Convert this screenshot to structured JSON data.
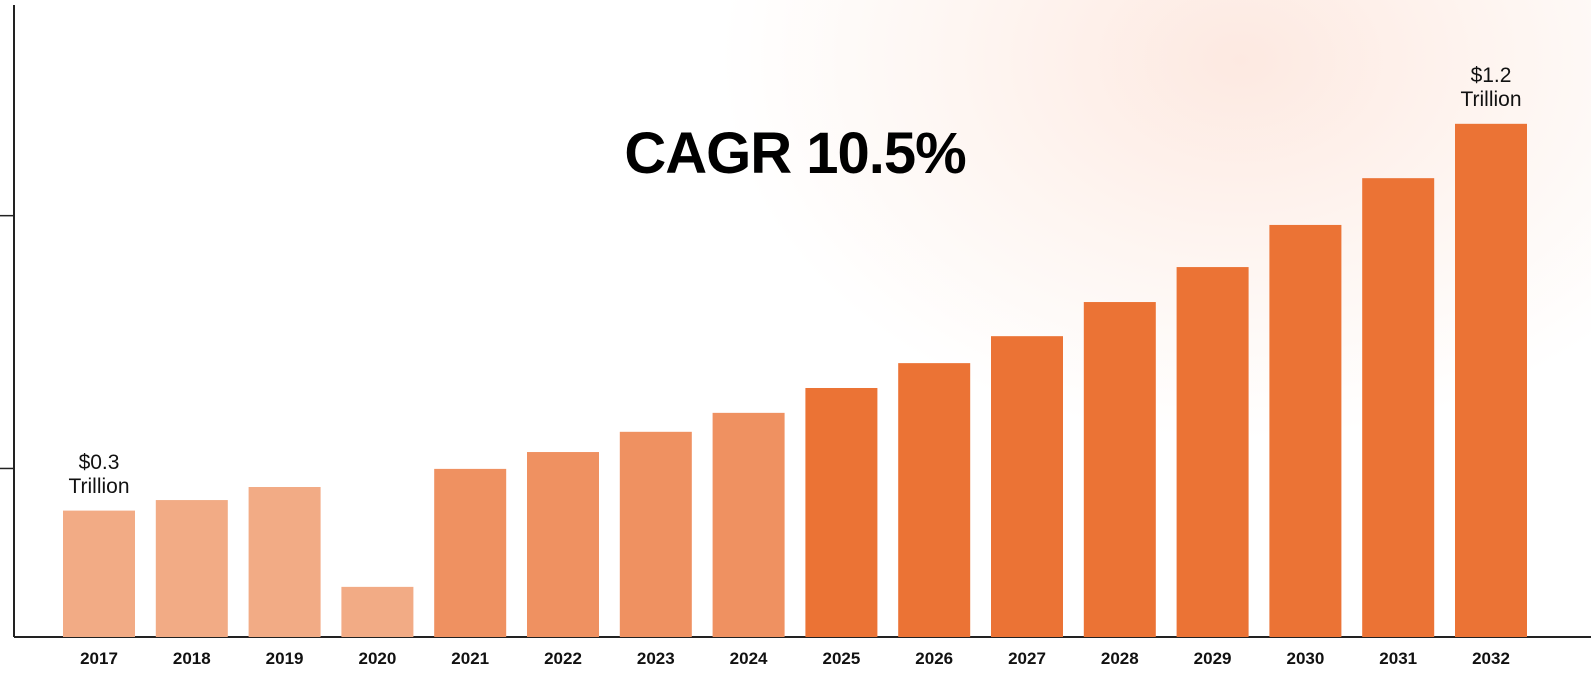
{
  "chart_data": {
    "type": "bar",
    "annotation": "CAGR 10.5%",
    "categories": [
      "2017",
      "2018",
      "2019",
      "2020",
      "2021",
      "2022",
      "2023",
      "2024",
      "2025",
      "2026",
      "2027",
      "2028",
      "2029",
      "2030",
      "2031",
      "2032"
    ],
    "values": [
      0.3,
      0.325,
      0.356,
      0.119,
      0.399,
      0.439,
      0.487,
      0.532,
      0.591,
      0.65,
      0.714,
      0.795,
      0.878,
      0.978,
      1.089,
      1.218
    ],
    "value_labels": [
      "$0.3\nTrillion",
      null,
      null,
      null,
      null,
      null,
      null,
      null,
      null,
      null,
      null,
      null,
      null,
      null,
      null,
      "$1.2\nTrillion"
    ],
    "colors": [
      "#f2ab85",
      "#f2ab85",
      "#f2ab85",
      "#f2ab85",
      "#ef9161",
      "#ef9161",
      "#ef9161",
      "#ef9161",
      "#eb7335",
      "#eb7335",
      "#eb7335",
      "#eb7335",
      "#eb7335",
      "#eb7335",
      "#eb7335",
      "#eb7335"
    ],
    "ylim": [
      0,
      1.5
    ],
    "yticks": [
      0.4,
      1.0
    ],
    "grid": false
  }
}
